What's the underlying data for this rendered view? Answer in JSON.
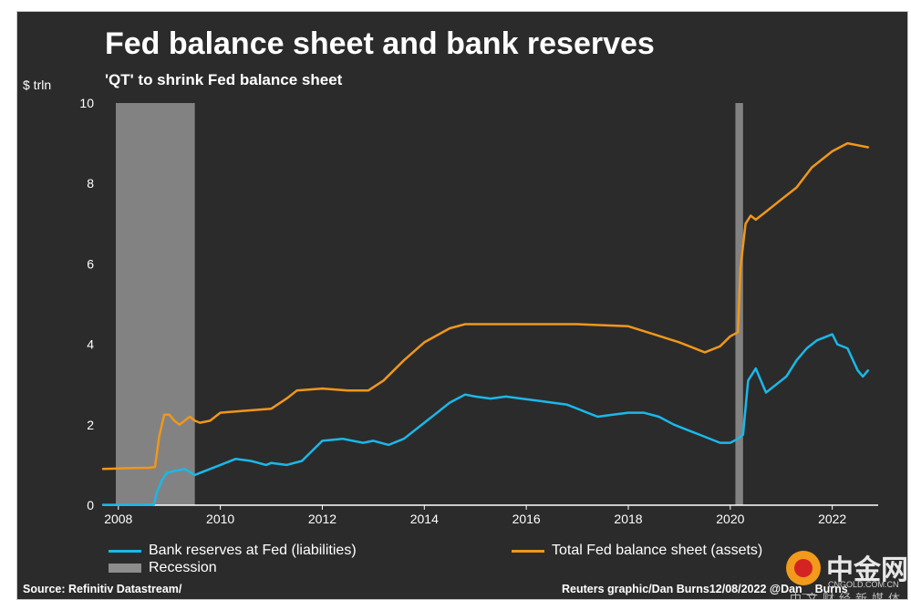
{
  "title": "Fed balance sheet and bank reserves",
  "subtitle": "'QT' to shrink Fed balance sheet",
  "unit_label": "$ trln",
  "source": "Source: Refinitiv Datastream/",
  "credit": "Reuters graphic/Dan Burns12/08/2022 @Dan__Burns",
  "watermark": {
    "name": "中金网",
    "url": "CNGOLD.COM.CN",
    "tagline": "中文财经新媒体"
  },
  "legend": {
    "reserves": "Bank reserves at Fed (liabilities)",
    "total": "Total Fed balance sheet (assets)",
    "recession": "Recession"
  },
  "colors": {
    "reserves": "#1ab8ea",
    "total": "#f0971b",
    "recession": "#8c8c8c",
    "background": "#2b2b2b",
    "axis": "#ffffff"
  },
  "chart_data": {
    "type": "line",
    "title": "Fed balance sheet and bank reserves",
    "subtitle": "'QT' to shrink Fed balance sheet",
    "ylabel": "$ trln",
    "xlim": [
      2007.7,
      2022.9
    ],
    "ylim": [
      0,
      10
    ],
    "xticks": [
      "2008",
      "2010",
      "2012",
      "2014",
      "2016",
      "2018",
      "2020",
      "2022"
    ],
    "yticks": [
      "0",
      "2",
      "4",
      "6",
      "8",
      "10"
    ],
    "grid": false,
    "legend_position": "bottom",
    "recessions": [
      [
        2007.95,
        2009.5
      ],
      [
        2020.1,
        2020.25
      ]
    ],
    "series": [
      {
        "name": "Bank reserves at Fed (liabilities)",
        "color": "#1ab8ea",
        "x": [
          2007.7,
          2008.1,
          2008.5,
          2008.7,
          2008.75,
          2008.85,
          2008.95,
          2009.1,
          2009.3,
          2009.5,
          2009.6,
          2009.8,
          2010.0,
          2010.3,
          2010.6,
          2010.9,
          2011.0,
          2011.3,
          2011.6,
          2012.0,
          2012.4,
          2012.8,
          2013.0,
          2013.3,
          2013.6,
          2013.9,
          2014.2,
          2014.5,
          2014.8,
          2015.0,
          2015.3,
          2015.6,
          2015.9,
          2016.2,
          2016.5,
          2016.8,
          2017.1,
          2017.4,
          2017.7,
          2018.0,
          2018.3,
          2018.6,
          2018.9,
          2019.2,
          2019.5,
          2019.8,
          2020.0,
          2020.15,
          2020.25,
          2020.35,
          2020.5,
          2020.7,
          2020.9,
          2021.1,
          2021.3,
          2021.5,
          2021.7,
          2021.9,
          2022.0,
          2022.1,
          2022.3,
          2022.5,
          2022.6,
          2022.7
        ],
        "values": [
          0.01,
          0.01,
          0.01,
          0.02,
          0.3,
          0.6,
          0.8,
          0.85,
          0.9,
          0.75,
          0.8,
          0.9,
          1.0,
          1.15,
          1.1,
          1.0,
          1.05,
          1.0,
          1.1,
          1.6,
          1.65,
          1.55,
          1.6,
          1.5,
          1.65,
          1.95,
          2.25,
          2.55,
          2.75,
          2.7,
          2.65,
          2.7,
          2.65,
          2.6,
          2.55,
          2.5,
          2.35,
          2.2,
          2.25,
          2.3,
          2.3,
          2.2,
          2.0,
          1.85,
          1.7,
          1.55,
          1.55,
          1.65,
          1.75,
          3.1,
          3.4,
          2.8,
          3.0,
          3.2,
          3.6,
          3.9,
          4.1,
          4.2,
          4.25,
          4.0,
          3.9,
          3.35,
          3.2,
          3.35
        ]
      },
      {
        "name": "Total Fed balance sheet (assets)",
        "color": "#f0971b",
        "x": [
          2007.7,
          2008.2,
          2008.6,
          2008.72,
          2008.8,
          2008.9,
          2009.0,
          2009.1,
          2009.2,
          2009.3,
          2009.4,
          2009.5,
          2009.6,
          2009.8,
          2010.0,
          2010.5,
          2011.0,
          2011.3,
          2011.5,
          2012.0,
          2012.5,
          2012.9,
          2013.2,
          2013.6,
          2014.0,
          2014.5,
          2014.8,
          2015.2,
          2016.0,
          2017.0,
          2018.0,
          2018.5,
          2019.0,
          2019.5,
          2019.8,
          2020.0,
          2020.15,
          2020.2,
          2020.3,
          2020.4,
          2020.5,
          2020.7,
          2021.0,
          2021.3,
          2021.6,
          2022.0,
          2022.3,
          2022.5,
          2022.7
        ],
        "values": [
          0.9,
          0.92,
          0.93,
          0.95,
          1.7,
          2.25,
          2.25,
          2.1,
          2.0,
          2.1,
          2.2,
          2.1,
          2.05,
          2.1,
          2.3,
          2.35,
          2.4,
          2.65,
          2.85,
          2.9,
          2.85,
          2.85,
          3.1,
          3.6,
          4.05,
          4.4,
          4.5,
          4.5,
          4.5,
          4.5,
          4.45,
          4.25,
          4.05,
          3.8,
          3.95,
          4.2,
          4.3,
          5.9,
          7.0,
          7.2,
          7.1,
          7.3,
          7.6,
          7.9,
          8.4,
          8.8,
          9.0,
          8.95,
          8.9
        ]
      }
    ]
  }
}
